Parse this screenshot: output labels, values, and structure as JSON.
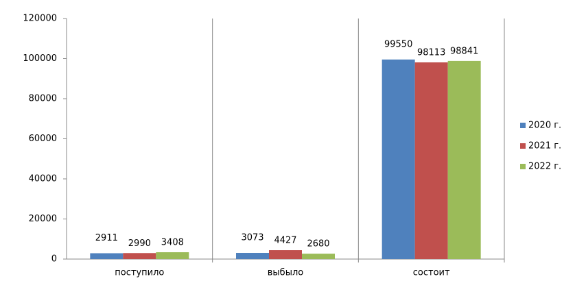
{
  "chart_data": {
    "type": "bar",
    "categories": [
      "поступило",
      "выбыло",
      "состоит"
    ],
    "series": [
      {
        "name": "2020 г.",
        "color": "#4f81bd",
        "values": [
          2911,
          3073,
          99550
        ]
      },
      {
        "name": "2021 г.",
        "color": "#c0504d",
        "values": [
          2990,
          4427,
          98113
        ]
      },
      {
        "name": "2022 г.",
        "color": "#9bbb59",
        "values": [
          3408,
          2680,
          98841
        ]
      }
    ],
    "ylim": [
      0,
      120000
    ],
    "yticks": [
      0,
      20000,
      40000,
      60000,
      80000,
      100000,
      120000
    ],
    "grid": false,
    "legend": "right"
  }
}
